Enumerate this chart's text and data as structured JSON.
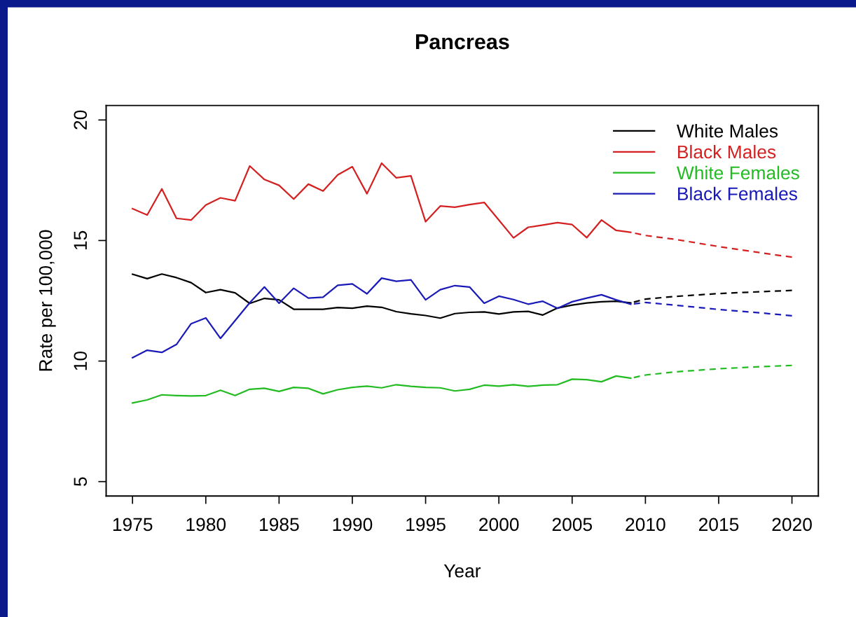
{
  "chart_data": {
    "type": "line",
    "title": "Pancreas",
    "xlabel": "Year",
    "ylabel": "Rate per 100,000",
    "xlim": [
      1973.2,
      2021.8
    ],
    "ylim": [
      4.4,
      20.6
    ],
    "xticks": [
      1975,
      1980,
      1985,
      1990,
      1995,
      2000,
      2005,
      2010,
      2015,
      2020
    ],
    "yticks": [
      5,
      10,
      15,
      20
    ],
    "grid": false,
    "legend": "top right",
    "marker": "none",
    "series": [
      {
        "name": "White Males",
        "color": "#000000",
        "line_style": "solid",
        "x": [
          1975,
          1976,
          1977,
          1978,
          1979,
          1980,
          1981,
          1982,
          1983,
          1984,
          1985,
          1986,
          1987,
          1988,
          1989,
          1990,
          1991,
          1992,
          1993,
          1994,
          1995,
          1996,
          1997,
          1998,
          1999,
          2000,
          2001,
          2002,
          2003,
          2004,
          2005,
          2006,
          2007,
          2008,
          2009
        ],
        "values": [
          13.6,
          13.42,
          13.61,
          13.46,
          13.25,
          12.84,
          12.96,
          12.83,
          12.39,
          12.6,
          12.54,
          12.15,
          12.15,
          12.15,
          12.22,
          12.19,
          12.28,
          12.23,
          12.05,
          11.96,
          11.89,
          11.78,
          11.97,
          12.02,
          12.04,
          11.95,
          12.04,
          12.06,
          11.91,
          12.2,
          12.32,
          12.41,
          12.46,
          12.48,
          12.41
        ]
      },
      {
        "name": "Black Males",
        "color": "#d42020",
        "line_style": "solid",
        "x": [
          1975,
          1976,
          1977,
          1978,
          1979,
          1980,
          1981,
          1982,
          1983,
          1984,
          1985,
          1986,
          1987,
          1988,
          1989,
          1990,
          1991,
          1992,
          1993,
          1994,
          1995,
          1996,
          1997,
          1998,
          1999,
          2000,
          2001,
          2002,
          2003,
          2004,
          2005,
          2006,
          2007,
          2008,
          2009
        ],
        "values": [
          16.32,
          16.06,
          17.14,
          15.92,
          15.85,
          16.47,
          16.77,
          16.65,
          18.09,
          17.53,
          17.29,
          16.72,
          17.34,
          17.05,
          17.72,
          18.06,
          16.94,
          18.21,
          17.6,
          17.68,
          15.78,
          16.43,
          16.38,
          16.49,
          16.58,
          15.85,
          15.11,
          15.55,
          15.64,
          15.74,
          15.66,
          15.12,
          15.85,
          15.42,
          15.34
        ]
      },
      {
        "name": "White Females",
        "color": "#22bb22",
        "line_style": "solid",
        "x": [
          1975,
          1976,
          1977,
          1978,
          1979,
          1980,
          1981,
          1982,
          1983,
          1984,
          1985,
          1986,
          1987,
          1988,
          1989,
          1990,
          1991,
          1992,
          1993,
          1994,
          1995,
          1996,
          1997,
          1998,
          1999,
          2000,
          2001,
          2002,
          2003,
          2004,
          2005,
          2006,
          2007,
          2008,
          2009
        ],
        "values": [
          8.26,
          8.39,
          8.6,
          8.57,
          8.55,
          8.57,
          8.79,
          8.57,
          8.83,
          8.87,
          8.74,
          8.91,
          8.87,
          8.64,
          8.81,
          8.91,
          8.96,
          8.89,
          9.02,
          8.95,
          8.91,
          8.89,
          8.76,
          8.83,
          9.0,
          8.96,
          9.02,
          8.95,
          9.0,
          9.02,
          9.25,
          9.23,
          9.14,
          9.38,
          9.29
        ]
      },
      {
        "name": "Black Females",
        "color": "#1a1ab8",
        "line_style": "solid",
        "x": [
          1975,
          1976,
          1977,
          1978,
          1979,
          1980,
          1981,
          1982,
          1983,
          1984,
          1985,
          1986,
          1987,
          1988,
          1989,
          1990,
          1991,
          1992,
          1993,
          1994,
          1995,
          1996,
          1997,
          1998,
          1999,
          2000,
          2001,
          2002,
          2003,
          2004,
          2005,
          2006,
          2007,
          2008,
          2009
        ],
        "values": [
          10.14,
          10.45,
          10.36,
          10.69,
          11.55,
          11.79,
          10.94,
          11.68,
          12.42,
          13.07,
          12.4,
          13.02,
          12.61,
          12.65,
          13.14,
          13.2,
          12.79,
          13.44,
          13.31,
          13.37,
          12.54,
          12.96,
          13.13,
          13.07,
          12.4,
          12.69,
          12.55,
          12.36,
          12.48,
          12.19,
          12.46,
          12.61,
          12.75,
          12.54,
          12.36
        ]
      },
      {
        "color": "#000000",
        "line_style": "dashed",
        "x": [
          2009,
          2010,
          2012,
          2015,
          2018,
          2020
        ],
        "values": [
          12.41,
          12.57,
          12.68,
          12.8,
          12.88,
          12.93
        ]
      },
      {
        "color": "#d42020",
        "line_style": "dashed",
        "x": [
          2009,
          2010,
          2012,
          2015,
          2018,
          2020
        ],
        "values": [
          15.34,
          15.21,
          15.05,
          14.75,
          14.48,
          14.31
        ]
      },
      {
        "color": "#22bb22",
        "line_style": "dashed",
        "x": [
          2009,
          2010,
          2012,
          2015,
          2018,
          2020
        ],
        "values": [
          9.29,
          9.42,
          9.55,
          9.68,
          9.77,
          9.82
        ]
      },
      {
        "color": "#1a1ab8",
        "line_style": "dashed",
        "x": [
          2009,
          2010,
          2012,
          2015,
          2018,
          2020
        ],
        "values": [
          12.36,
          12.43,
          12.32,
          12.14,
          11.99,
          11.88
        ]
      }
    ]
  }
}
